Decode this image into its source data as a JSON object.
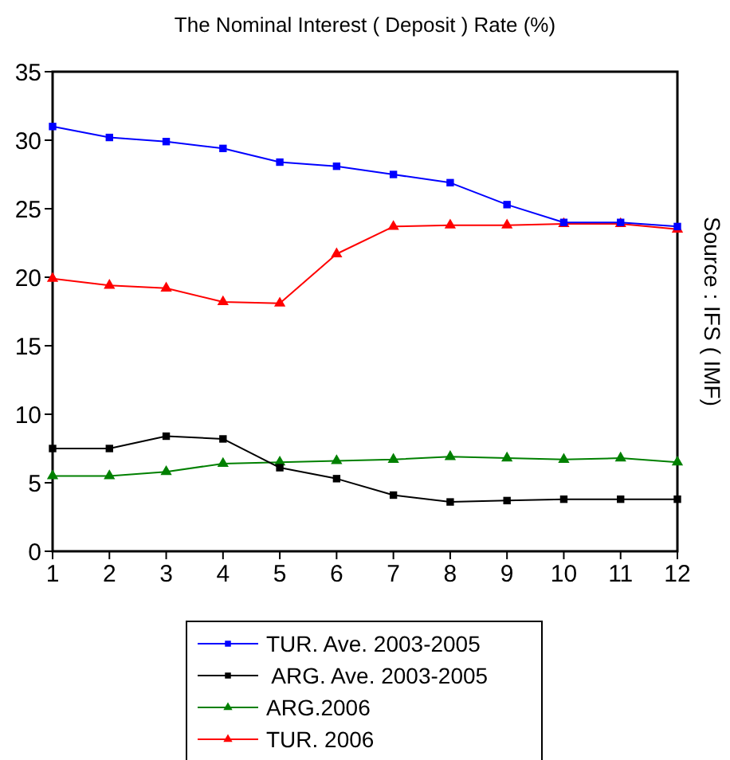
{
  "chart_data": {
    "type": "line",
    "title": "The Nominal Interest ( Deposit ) Rate (%)",
    "annotations": [
      "Source : IFS ( IMF)"
    ],
    "x": [
      1,
      2,
      3,
      4,
      5,
      6,
      7,
      8,
      9,
      10,
      11,
      12
    ],
    "xlim": [
      1,
      12
    ],
    "xticks": [
      1,
      2,
      3,
      4,
      5,
      6,
      7,
      8,
      9,
      10,
      11,
      12
    ],
    "ylim": [
      0,
      35
    ],
    "yticks": [
      0,
      5,
      10,
      15,
      20,
      25,
      30,
      35
    ],
    "grid": false,
    "legend": "bottom",
    "line_style": "solid",
    "series": [
      {
        "name": "TUR. Ave. 2003-2005",
        "color": "#0000ff",
        "marker": "square",
        "values": [
          31.0,
          30.2,
          29.9,
          29.4,
          28.4,
          28.1,
          27.5,
          26.9,
          25.3,
          24.0,
          24.0,
          23.7
        ]
      },
      {
        "name": " ARG. Ave. 2003-2005",
        "color": "#000000",
        "marker": "square",
        "values": [
          7.5,
          7.5,
          8.4,
          8.2,
          6.1,
          5.3,
          4.1,
          3.6,
          3.7,
          3.8,
          3.8,
          3.8
        ]
      },
      {
        "name": "ARG.2006",
        "color": "#008000",
        "marker": "triangle",
        "values": [
          5.5,
          5.5,
          5.8,
          6.4,
          6.5,
          6.6,
          6.7,
          6.9,
          6.8,
          6.7,
          6.8,
          6.5
        ]
      },
      {
        "name": "TUR. 2006",
        "color": "#ff0000",
        "marker": "triangle",
        "values": [
          19.9,
          19.4,
          19.2,
          18.2,
          18.1,
          21.7,
          23.7,
          23.8,
          23.8,
          23.9,
          23.9,
          23.5
        ]
      }
    ]
  }
}
